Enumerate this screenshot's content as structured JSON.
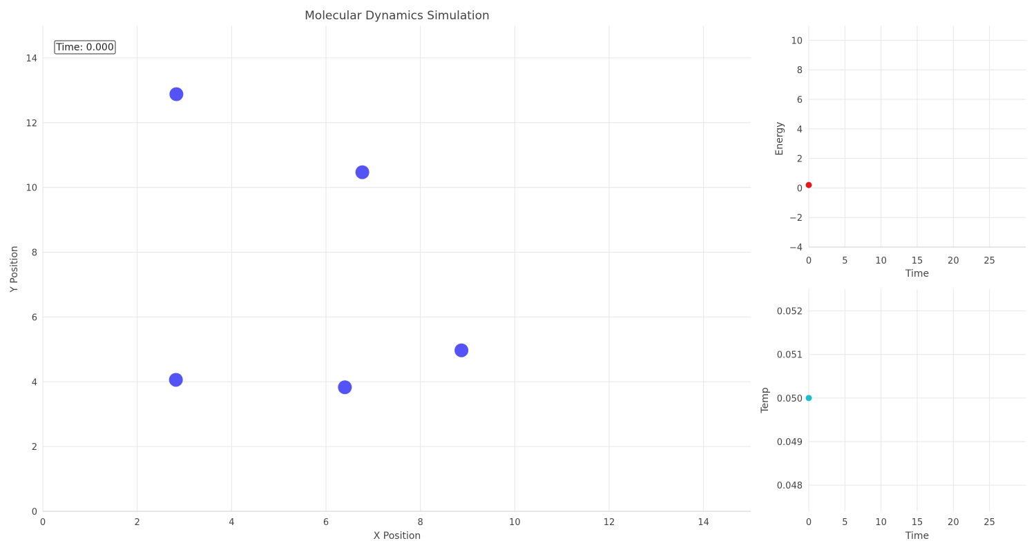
{
  "colors": {
    "particle": "#4b4bf5",
    "energy_marker": "#e31a1c",
    "temp_marker": "#17becf",
    "grid": "#e6e6e6"
  },
  "chart_data": [
    {
      "id": "positions",
      "type": "scatter",
      "title": "Molecular Dynamics Simulation",
      "xlabel": "X Position",
      "ylabel": "Y Position",
      "xlim": [
        0,
        15
      ],
      "ylim": [
        0,
        15
      ],
      "xticks": [
        0,
        2,
        4,
        6,
        8,
        10,
        12,
        14
      ],
      "yticks": [
        0,
        2,
        4,
        6,
        8,
        10,
        12,
        14
      ],
      "annotation": "Time: 0.000",
      "grid": true,
      "series": [
        {
          "x": [
            2.83,
            6.77,
            2.82,
            6.4,
            8.87
          ],
          "y": [
            12.88,
            10.47,
            4.06,
            3.83,
            4.97
          ]
        }
      ]
    },
    {
      "id": "energy",
      "type": "scatter",
      "xlabel": "Time",
      "ylabel": "Energy",
      "xlim": [
        0,
        30
      ],
      "ylim": [
        -4,
        11
      ],
      "xticks": [
        0,
        5,
        10,
        15,
        20,
        25
      ],
      "yticks": [
        -4,
        -2,
        0,
        2,
        4,
        6,
        8,
        10
      ],
      "ytick_labels": [
        "−4",
        "−2",
        "0",
        "2",
        "4",
        "6",
        "8",
        "10"
      ],
      "grid": true,
      "series": [
        {
          "x": [
            0
          ],
          "y": [
            0.2
          ]
        }
      ]
    },
    {
      "id": "temperature",
      "type": "scatter",
      "xlabel": "Time",
      "ylabel": "Temp",
      "xlim": [
        0,
        30
      ],
      "ylim": [
        0.0474,
        0.0525
      ],
      "xticks": [
        0,
        5,
        10,
        15,
        20,
        25
      ],
      "yticks": [
        0.048,
        0.049,
        0.05,
        0.051,
        0.052
      ],
      "ytick_labels": [
        "0.048",
        "0.049",
        "0.050",
        "0.051",
        "0.052"
      ],
      "grid": true,
      "series": [
        {
          "x": [
            0
          ],
          "y": [
            0.05
          ]
        }
      ]
    }
  ]
}
